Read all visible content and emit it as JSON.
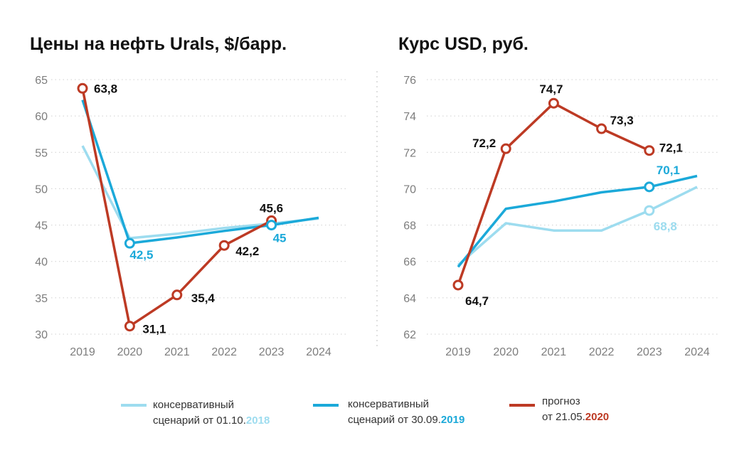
{
  "colors": {
    "series_2018": "#9ddcef",
    "series_2019": "#1ba9d9",
    "series_2020": "#bd3a24",
    "grid": "#cfcfcf",
    "tick_text": "#7d7d7d",
    "label_text": "#111111"
  },
  "legend": [
    {
      "line1": "консервативный",
      "line2_prefix": "сценарий от 01.10.",
      "line2_year": "2018",
      "color": "#9ddcef"
    },
    {
      "line1": "консервативный",
      "line2_prefix": "сценарий от 30.09.",
      "line2_year": "2019",
      "color": "#1ba9d9"
    },
    {
      "line1": "прогноз",
      "line2_prefix": "от 21.05.",
      "line2_year": "2020",
      "color": "#bd3a24"
    }
  ],
  "chart_data": [
    {
      "type": "line",
      "title": "Цены на нефть Urals, $/барр.",
      "categories": [
        "2019",
        "2020",
        "2021",
        "2022",
        "2023",
        "2024"
      ],
      "ylim": [
        30,
        65
      ],
      "yticks": [
        30,
        35,
        40,
        45,
        50,
        55,
        60,
        65
      ],
      "grid": true,
      "series": [
        {
          "name": "консервативный сценарий от 01.10.2018",
          "color": "#9ddcef",
          "x": [
            "2019",
            "2020",
            "2021",
            "2022",
            "2023",
            "2024"
          ],
          "values": [
            55.9,
            43.2,
            43.8,
            44.6,
            45.2,
            45.9
          ]
        },
        {
          "name": "консервативный сценарий от 30.09.2019",
          "color": "#1ba9d9",
          "x": [
            "2019",
            "2020",
            "2021",
            "2022",
            "2023",
            "2024"
          ],
          "values": [
            62.2,
            42.5,
            43.3,
            44.2,
            45,
            46
          ]
        },
        {
          "name": "прогноз от 21.05.2020",
          "color": "#bd3a24",
          "x": [
            "2019",
            "2020",
            "2021",
            "2022",
            "2023"
          ],
          "values": [
            63.8,
            31.1,
            35.4,
            42.2,
            45.6
          ]
        }
      ],
      "annotations": [
        {
          "text": "63,8",
          "x": "2019",
          "value": 63.8,
          "series": 2,
          "dx": 16,
          "dy": 6,
          "anchor": "start",
          "color": "#111111"
        },
        {
          "text": "31,1",
          "x": "2020",
          "value": 31.1,
          "series": 2,
          "dx": 18,
          "dy": 10,
          "anchor": "start",
          "color": "#111111"
        },
        {
          "text": "35,4",
          "x": "2021",
          "value": 35.4,
          "series": 2,
          "dx": 20,
          "dy": 10,
          "anchor": "start",
          "color": "#111111"
        },
        {
          "text": "42,2",
          "x": "2022",
          "value": 42.2,
          "series": 2,
          "dx": 16,
          "dy": 14,
          "anchor": "start",
          "color": "#111111"
        },
        {
          "text": "45,6",
          "x": "2023",
          "value": 45.6,
          "series": 2,
          "dx": 0,
          "dy": -12,
          "anchor": "middle",
          "color": "#111111"
        },
        {
          "text": "42,5",
          "x": "2020",
          "value": 42.5,
          "series": 1,
          "dx": 0,
          "dy": 22,
          "anchor": "start",
          "color": "#1ba9d9"
        },
        {
          "text": "45",
          "x": "2023",
          "value": 45,
          "series": 1,
          "dx": 2,
          "dy": 24,
          "anchor": "start",
          "color": "#1ba9d9"
        }
      ],
      "markers": [
        {
          "series": 2,
          "points": [
            0,
            1,
            2,
            3,
            4
          ]
        },
        {
          "series": 1,
          "points": [
            1,
            4
          ]
        }
      ]
    },
    {
      "type": "line",
      "title": "Курс USD, руб.",
      "categories": [
        "2019",
        "2020",
        "2021",
        "2022",
        "2023",
        "2024"
      ],
      "ylim": [
        62,
        76
      ],
      "yticks": [
        62,
        64,
        66,
        68,
        70,
        72,
        74,
        76
      ],
      "grid": true,
      "series": [
        {
          "name": "консервативный сценарий от 01.10.2018",
          "color": "#9ddcef",
          "x": [
            "2019",
            "2020",
            "2021",
            "2022",
            "2023",
            "2024"
          ],
          "values": [
            65.8,
            68.1,
            67.7,
            67.7,
            68.8,
            70.1
          ]
        },
        {
          "name": "консервативный сценарий от 30.09.2019",
          "color": "#1ba9d9",
          "x": [
            "2019",
            "2020",
            "2021",
            "2022",
            "2023",
            "2024"
          ],
          "values": [
            65.7,
            68.9,
            69.3,
            69.8,
            70.1,
            70.7
          ]
        },
        {
          "name": "прогноз от 21.05.2020",
          "color": "#bd3a24",
          "x": [
            "2019",
            "2020",
            "2021",
            "2022",
            "2023"
          ],
          "values": [
            64.7,
            72.2,
            74.7,
            73.3,
            72.1
          ]
        }
      ],
      "annotations": [
        {
          "text": "64,7",
          "x": "2019",
          "value": 64.7,
          "series": 2,
          "dx": 10,
          "dy": 28,
          "anchor": "start",
          "color": "#111111"
        },
        {
          "text": "72,2",
          "x": "2020",
          "value": 72.2,
          "series": 2,
          "dx": -14,
          "dy": -2,
          "anchor": "end",
          "color": "#111111"
        },
        {
          "text": "74,7",
          "x": "2021",
          "value": 74.7,
          "series": 2,
          "dx": -20,
          "dy": -14,
          "anchor": "start",
          "color": "#111111"
        },
        {
          "text": "73,3",
          "x": "2022",
          "value": 73.3,
          "series": 2,
          "dx": 12,
          "dy": -6,
          "anchor": "start",
          "color": "#111111"
        },
        {
          "text": "72,1",
          "x": "2023",
          "value": 72.1,
          "series": 2,
          "dx": 14,
          "dy": 2,
          "anchor": "start",
          "color": "#111111"
        },
        {
          "text": "70,1",
          "x": "2023",
          "value": 70.1,
          "series": 1,
          "dx": 10,
          "dy": -18,
          "anchor": "start",
          "color": "#1ba9d9"
        },
        {
          "text": "68,8",
          "x": "2023",
          "value": 68.8,
          "series": 0,
          "dx": 6,
          "dy": 28,
          "anchor": "start",
          "color": "#9ddcef"
        }
      ],
      "markers": [
        {
          "series": 2,
          "points": [
            0,
            1,
            2,
            3,
            4
          ]
        },
        {
          "series": 1,
          "points": [
            4
          ]
        },
        {
          "series": 0,
          "points": [
            4
          ]
        }
      ]
    }
  ]
}
